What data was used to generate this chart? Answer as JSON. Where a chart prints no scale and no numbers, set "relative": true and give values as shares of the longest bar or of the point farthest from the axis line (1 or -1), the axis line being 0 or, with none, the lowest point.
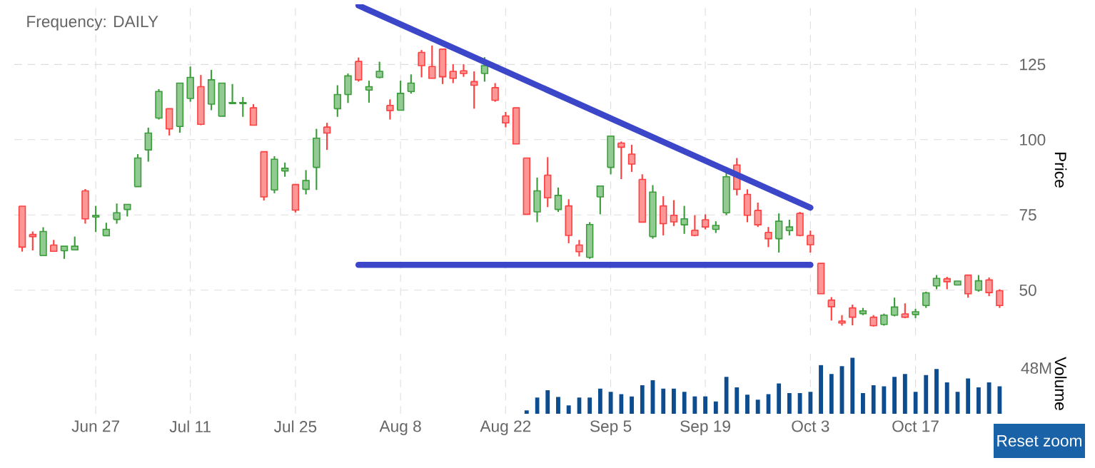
{
  "chart_data": [
    {
      "type": "candlestick",
      "title": "Frequency: DAILY",
      "ylabel": "Price",
      "categories": [
        null,
        null,
        null,
        null,
        null,
        null,
        null,
        null,
        null,
        null,
        null,
        null,
        null,
        null,
        null,
        null,
        null,
        null,
        null,
        null,
        null,
        null,
        null,
        null,
        null,
        null,
        null,
        null,
        null,
        null,
        null,
        null,
        null,
        null,
        null,
        null,
        null,
        null,
        null,
        null,
        null,
        null,
        null,
        null,
        null,
        null,
        null,
        null,
        null,
        null,
        null,
        null,
        null,
        null,
        null,
        null,
        null,
        null,
        null,
        null,
        null,
        null,
        null,
        null,
        null,
        null,
        null,
        null,
        null,
        null,
        null,
        null,
        null,
        null,
        null,
        null,
        null,
        null,
        null,
        null,
        null,
        null,
        null,
        null,
        null,
        null,
        null,
        null,
        null,
        null,
        null,
        null,
        null,
        null
      ],
      "ohlc": [
        [
          77.9,
          77.9,
          62.8,
          64.3
        ],
        [
          68.5,
          69.5,
          63.2,
          67.8
        ],
        [
          61.5,
          70.9,
          61.5,
          69.5
        ],
        [
          65,
          66.7,
          62.9,
          62.9
        ],
        [
          63.1,
          64.6,
          60.4,
          64.6
        ],
        [
          63.4,
          67.8,
          63.4,
          64.6
        ],
        [
          83,
          83.6,
          72.1,
          73.7
        ],
        [
          74.3,
          78,
          69.3,
          74.8
        ],
        [
          68.1,
          72.4,
          68.1,
          70.2
        ],
        [
          73.5,
          78.8,
          72.1,
          75.7
        ],
        [
          76.8,
          78.5,
          74.5,
          78.5
        ],
        [
          84.4,
          95.2,
          84.4,
          93.9
        ],
        [
          96.6,
          104,
          92.7,
          102.2
        ],
        [
          107.2,
          116.8,
          106.7,
          116
        ],
        [
          110.3,
          110.3,
          101.4,
          103.6
        ],
        [
          104.4,
          118.8,
          102.3,
          118.8
        ],
        [
          113.7,
          124.3,
          112.6,
          120.7
        ],
        [
          117.6,
          121.5,
          104.8,
          105.1
        ],
        [
          111.8,
          123.2,
          109.8,
          119.9
        ],
        [
          107.8,
          118.8,
          107.8,
          118.8
        ],
        [
          112,
          118.5,
          112,
          112.3
        ],
        [
          112,
          114.2,
          107.6,
          112.3
        ],
        [
          110.6,
          111.8,
          104.8,
          104.8
        ],
        [
          96,
          96,
          79.8,
          81
        ],
        [
          83.3,
          94.5,
          82.2,
          93.5
        ],
        [
          89.6,
          92.4,
          87.7,
          90.5
        ],
        [
          85.1,
          85.1,
          75.8,
          76.6
        ],
        [
          83.5,
          89.9,
          81.8,
          86.4
        ],
        [
          90.8,
          103.6,
          83.3,
          100.5
        ],
        [
          104.2,
          105.6,
          96.6,
          102.2
        ],
        [
          110.3,
          118.1,
          107.6,
          115
        ],
        [
          115,
          122,
          112.2,
          121.2
        ],
        [
          126,
          127.3,
          119.3,
          119.9
        ],
        [
          116.5,
          119.6,
          112.3,
          117.6
        ],
        [
          120.7,
          125.9,
          120.4,
          122.7
        ],
        [
          111.4,
          113.4,
          106.7,
          109.7
        ],
        [
          109.8,
          119.6,
          109.8,
          115.4
        ],
        [
          116,
          121.7,
          115.3,
          118.8
        ],
        [
          129,
          129.8,
          120.7,
          124.6
        ],
        [
          124.3,
          131.3,
          120.4,
          120.4
        ],
        [
          130.1,
          130.1,
          118.5,
          120.9
        ],
        [
          122.7,
          125.1,
          118.8,
          120.4
        ],
        [
          122.9,
          125.1,
          120.9,
          122
        ],
        [
          119.3,
          122.7,
          110.3,
          118.1
        ],
        [
          122,
          127.4,
          119.3,
          124.6
        ],
        [
          117.3,
          118.8,
          112.6,
          113.1
        ],
        [
          107.9,
          109.2,
          104.1,
          105.6
        ],
        [
          110.6,
          110.6,
          98.6,
          98.6
        ],
        [
          93.9,
          93.9,
          75.2,
          75.2
        ],
        [
          76,
          87.4,
          72.6,
          83
        ],
        [
          88.2,
          94.2,
          77.6,
          80.7
        ],
        [
          76.8,
          84.1,
          76,
          81.5
        ],
        [
          78,
          80.2,
          65.6,
          68.2
        ],
        [
          65,
          66.7,
          61.2,
          62.8
        ],
        [
          60.9,
          72.6,
          60.4,
          71.8
        ],
        [
          81,
          84.6,
          75.2,
          84.6
        ],
        [
          90.8,
          101.2,
          88.5,
          101.2
        ],
        [
          98.9,
          99.4,
          86.9,
          97.5
        ],
        [
          95.2,
          98.3,
          89.3,
          91.9
        ],
        [
          86.8,
          88.5,
          72.6,
          72.6
        ],
        [
          67.8,
          84.9,
          67.1,
          82.6
        ],
        [
          78,
          81.2,
          68.2,
          72.1
        ],
        [
          74.9,
          79.9,
          71.3,
          72.7
        ],
        [
          71.7,
          78,
          68.7,
          73.7
        ],
        [
          69.9,
          74.9,
          67.9,
          68.2
        ],
        [
          73.4,
          75.2,
          70.2,
          71
        ],
        [
          70.2,
          72.9,
          69,
          71.5
        ],
        [
          75.7,
          89.3,
          74.9,
          87.7
        ],
        [
          91.6,
          93.9,
          81.5,
          83.5
        ],
        [
          81.8,
          83.5,
          72.6,
          74.9
        ],
        [
          76.5,
          79.1,
          71,
          71.7
        ],
        [
          69.2,
          71,
          64.3,
          67.1
        ],
        [
          67.1,
          75.5,
          62.5,
          72.9
        ],
        [
          69.8,
          73.4,
          68.2,
          71
        ],
        [
          75.5,
          76,
          67.9,
          68.2
        ],
        [
          68.2,
          69.8,
          62.5,
          65.1
        ],
        [
          58.9,
          58.9,
          48.8,
          48.8
        ],
        [
          46.7,
          47.7,
          39.9,
          44.5
        ],
        [
          39.7,
          41.7,
          38.2,
          39.1
        ],
        [
          44.1,
          45.2,
          38.3,
          41
        ],
        [
          42.2,
          44.1,
          41.7,
          43.1
        ],
        [
          41,
          41.7,
          37.9,
          38.2
        ],
        [
          38.6,
          42.2,
          38.2,
          41.7
        ],
        [
          41.7,
          47.5,
          41.3,
          44.4
        ],
        [
          42.1,
          45.6,
          40.7,
          41
        ],
        [
          41.9,
          43.8,
          40.7,
          42.8
        ],
        [
          44.9,
          49.5,
          44.1,
          49.1
        ],
        [
          51.4,
          55,
          50.3,
          53.9
        ],
        [
          53.8,
          54.4,
          50.3,
          52.8
        ],
        [
          51.7,
          53,
          51.7,
          53
        ],
        [
          55,
          55,
          47.5,
          48.8
        ],
        [
          50,
          55,
          49.5,
          53.1
        ],
        [
          53.4,
          54.2,
          48,
          49.2
        ],
        [
          49.8,
          50.3,
          44.1,
          44.9
        ]
      ],
      "colors": [
        "#ff4040",
        "#ff4040",
        "#3a9d3a",
        "#ff4040",
        "#3a9d3a",
        "#3a9d3a",
        "#ff4040",
        "#3a9d3a",
        "#3a9d3a",
        "#3a9d3a",
        "#3a9d3a",
        "#3a9d3a",
        "#3a9d3a",
        "#3a9d3a",
        "#ff4040",
        "#3a9d3a",
        "#3a9d3a",
        "#ff4040",
        "#3a9d3a",
        "#3a9d3a",
        "#3a9d3a",
        "#3a9d3a",
        "#ff4040",
        "#ff4040",
        "#3a9d3a",
        "#3a9d3a",
        "#ff4040",
        "#3a9d3a",
        "#3a9d3a",
        "#ff4040",
        "#3a9d3a",
        "#3a9d3a",
        "#ff4040",
        "#3a9d3a",
        "#3a9d3a",
        "#ff4040",
        "#3a9d3a",
        "#3a9d3a",
        "#ff4040",
        "#ff4040",
        "#ff4040",
        "#ff4040",
        "#ff4040",
        "#ff4040",
        "#3a9d3a",
        "#ff4040",
        "#ff4040",
        "#ff4040",
        "#ff4040",
        "#3a9d3a",
        "#ff4040",
        "#3a9d3a",
        "#ff4040",
        "#ff4040",
        "#3a9d3a",
        "#3a9d3a",
        "#3a9d3a",
        "#ff4040",
        "#ff4040",
        "#ff4040",
        "#3a9d3a",
        "#ff4040",
        "#ff4040",
        "#3a9d3a",
        "#ff4040",
        "#ff4040",
        "#3a9d3a",
        "#3a9d3a",
        "#ff4040",
        "#ff4040",
        "#ff4040",
        "#ff4040",
        "#3a9d3a",
        "#3a9d3a",
        "#ff4040",
        "#ff4040",
        "#ff4040",
        "#ff4040",
        "#ff4040",
        "#ff4040",
        "#3a9d3a",
        "#ff4040",
        "#3a9d3a",
        "#3a9d3a",
        "#ff4040",
        "#3a9d3a",
        "#3a9d3a",
        "#3a9d3a",
        "#ff4040",
        "#3a9d3a",
        "#ff4040",
        "#3a9d3a",
        "#ff4040",
        "#ff4040"
      ],
      "ylim": [
        35,
        145
      ],
      "yticks": [
        50,
        75,
        100,
        125
      ],
      "grid": true,
      "tick_labels": "y",
      "series": [
        {
          "type": "line",
          "color": "#3c46c8",
          "values": [
            null,
            null,
            null,
            null,
            null,
            null,
            null,
            null,
            null,
            null,
            null,
            null,
            null,
            null,
            null,
            null,
            null,
            null,
            null,
            null,
            null,
            null,
            null,
            null,
            null,
            null,
            null,
            null,
            null,
            null,
            null,
            null,
            144.6,
            null,
            null,
            null,
            null,
            null,
            null,
            null,
            null,
            null,
            null,
            null,
            null,
            null,
            null,
            null,
            null,
            null,
            null,
            null,
            null,
            null,
            null,
            null,
            null,
            null,
            null,
            null,
            null,
            null,
            null,
            null,
            null,
            null,
            null,
            null,
            null,
            null,
            null,
            null,
            null,
            null,
            null,
            77.4,
            null,
            null,
            null,
            null,
            null,
            null,
            null,
            null,
            null,
            null,
            null,
            null,
            null,
            null,
            null,
            null,
            null,
            null
          ]
        },
        {
          "type": "line",
          "color": "#3c46c8",
          "values": [
            null,
            null,
            null,
            null,
            null,
            null,
            null,
            null,
            null,
            null,
            null,
            null,
            null,
            null,
            null,
            null,
            null,
            null,
            null,
            null,
            null,
            null,
            null,
            null,
            null,
            null,
            null,
            null,
            null,
            null,
            null,
            null,
            58.4,
            null,
            null,
            null,
            null,
            null,
            null,
            null,
            null,
            null,
            null,
            null,
            null,
            null,
            null,
            null,
            null,
            null,
            null,
            null,
            null,
            null,
            null,
            null,
            null,
            null,
            null,
            null,
            null,
            null,
            null,
            null,
            null,
            null,
            null,
            null,
            null,
            null,
            null,
            null,
            null,
            null,
            null,
            58.4,
            null,
            null,
            null,
            null,
            null,
            null,
            null,
            null,
            null,
            null,
            null,
            null,
            null,
            null,
            null,
            null,
            null,
            null
          ]
        }
      ]
    },
    {
      "type": "bar",
      "ylabel": "Volume",
      "relative": true,
      "color": "#0d4d8f",
      "grid": "x",
      "tick_labels": "x",
      "categories": [
        null,
        null,
        null,
        null,
        null,
        null,
        null,
        "Jun 27",
        null,
        null,
        null,
        null,
        null,
        null,
        null,
        null,
        "Jul 11",
        null,
        null,
        null,
        null,
        null,
        null,
        null,
        null,
        null,
        "Jul 25",
        null,
        null,
        null,
        null,
        null,
        null,
        null,
        null,
        null,
        "Aug 8",
        null,
        null,
        null,
        null,
        null,
        null,
        null,
        null,
        null,
        "Aug 22",
        null,
        null,
        null,
        null,
        null,
        null,
        null,
        null,
        null,
        "Sep 5",
        null,
        null,
        null,
        null,
        null,
        null,
        null,
        null,
        "Sep 19",
        null,
        null,
        null,
        null,
        null,
        null,
        null,
        null,
        null,
        "Oct 3",
        null,
        null,
        null,
        null,
        null,
        null,
        null,
        null,
        null,
        "Oct 17",
        null,
        null,
        null,
        null,
        null,
        null,
        null,
        null
      ],
      "values": [
        null,
        null,
        null,
        null,
        null,
        null,
        null,
        null,
        null,
        null,
        null,
        null,
        null,
        null,
        null,
        null,
        null,
        null,
        null,
        null,
        null,
        null,
        null,
        null,
        null,
        null,
        null,
        null,
        null,
        null,
        null,
        null,
        null,
        null,
        null,
        null,
        null,
        null,
        null,
        null,
        null,
        null,
        null,
        null,
        null,
        null,
        null,
        null,
        0.06,
        0.29,
        0.42,
        0.3,
        0.15,
        0.29,
        0.29,
        0.45,
        0.39,
        0.35,
        0.31,
        0.51,
        0.6,
        0.45,
        0.45,
        0.39,
        0.31,
        0.31,
        0.22,
        0.66,
        0.47,
        0.34,
        0.25,
        0.35,
        0.54,
        0.37,
        0.37,
        0.39,
        0.87,
        0.71,
        0.85,
        1,
        0.37,
        0.51,
        0.49,
        0.66,
        0.71,
        0.39,
        0.69,
        0.8,
        0.56,
        0.39,
        0.63,
        0.47,
        0.56,
        0.49
      ],
      "annotations": [
        "48M",
        "Reset zoom"
      ]
    }
  ]
}
